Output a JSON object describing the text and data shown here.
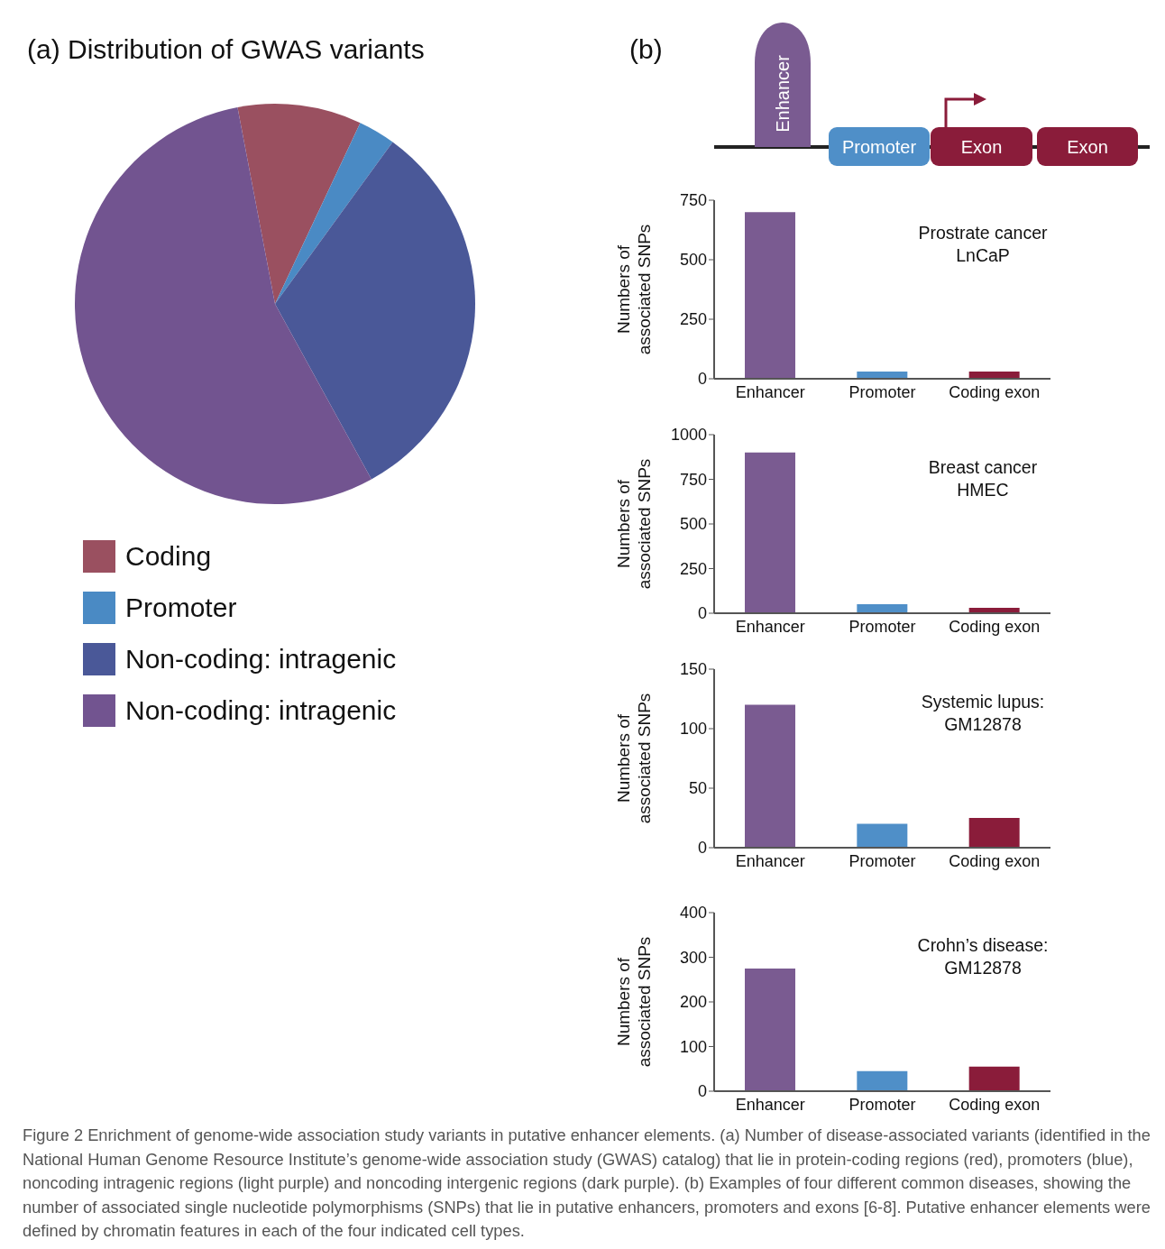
{
  "chart_data": [
    {
      "type": "pie",
      "title": "(a) Distribution of GWAS variants",
      "categories": [
        "Coding",
        "Promoter",
        "Non-coding: intragenic",
        "Non-coding: intragenic"
      ],
      "values": [
        10,
        3,
        32,
        55
      ],
      "colors": [
        "#9a5060",
        "#4a8ac4",
        "#4a5898",
        "#725490"
      ],
      "legend": "bottom",
      "annotations": [
        "Figure 2 Enrichment of genome-wide association study variants in putative enhancer elements. (a) Number of disease-associated variants (identified in the National Human Genome Resource Institute’s genome-wide association study (GWAS) catalog) that lie in protein-coding regions (red), promoters (blue), noncoding intragenic regions (light purple) and noncoding intergenic regions (dark purple). (b) Examples of four different common diseases, showing the number of associated single nucleotide polymorphisms (SNPs) that lie in putative enhancers, promoters and exons [6-8]. Putative enhancer elements were defined by chromatin features in each of the four indicated cell types."
      ]
    },
    {
      "type": "other",
      "title": "(b)",
      "annotations": [
        "Enhancer",
        "Promoter",
        "Exon",
        "Exon"
      ]
    },
    {
      "type": "bar",
      "categories": [
        "Enhancer",
        "Promoter",
        "Coding exon"
      ],
      "values": [
        700,
        30,
        30
      ],
      "colors": [
        "#7a5b91",
        "#4f8fc8",
        "#8a1c3a"
      ],
      "ylabel": "Numbers of associated SNPs",
      "ylim": [
        0,
        750
      ],
      "yticks": [
        0,
        250,
        500,
        750
      ],
      "annotations": [
        "Prostrate cancer\nLnCaP"
      ]
    },
    {
      "type": "bar",
      "categories": [
        "Enhancer",
        "Promoter",
        "Coding exon"
      ],
      "values": [
        900,
        50,
        30
      ],
      "colors": [
        "#7a5b91",
        "#4f8fc8",
        "#8a1c3a"
      ],
      "ylabel": "Numbers of associated SNPs",
      "ylim": [
        0,
        1000
      ],
      "yticks": [
        0,
        250,
        500,
        750,
        1000
      ],
      "annotations": [
        "Breast cancer\nHMEC"
      ]
    },
    {
      "type": "bar",
      "categories": [
        "Enhancer",
        "Promoter",
        "Coding exon"
      ],
      "values": [
        120,
        20,
        25
      ],
      "colors": [
        "#7a5b91",
        "#4f8fc8",
        "#8a1c3a"
      ],
      "ylabel": "Numbers of associated SNPs",
      "ylim": [
        0,
        150
      ],
      "yticks": [
        0,
        50,
        100,
        150
      ],
      "annotations": [
        "Systemic lupus:\nGM12878"
      ]
    },
    {
      "type": "bar",
      "categories": [
        "Enhancer",
        "Promoter",
        "Coding exon"
      ],
      "values": [
        275,
        45,
        55
      ],
      "colors": [
        "#7a5b91",
        "#4f8fc8",
        "#8a1c3a"
      ],
      "ylabel": "Numbers of associated SNPs",
      "ylim": [
        0,
        400
      ],
      "yticks": [
        0,
        100,
        200,
        300,
        400
      ],
      "annotations": [
        "Crohn’s disease:\nGM12878"
      ]
    }
  ]
}
